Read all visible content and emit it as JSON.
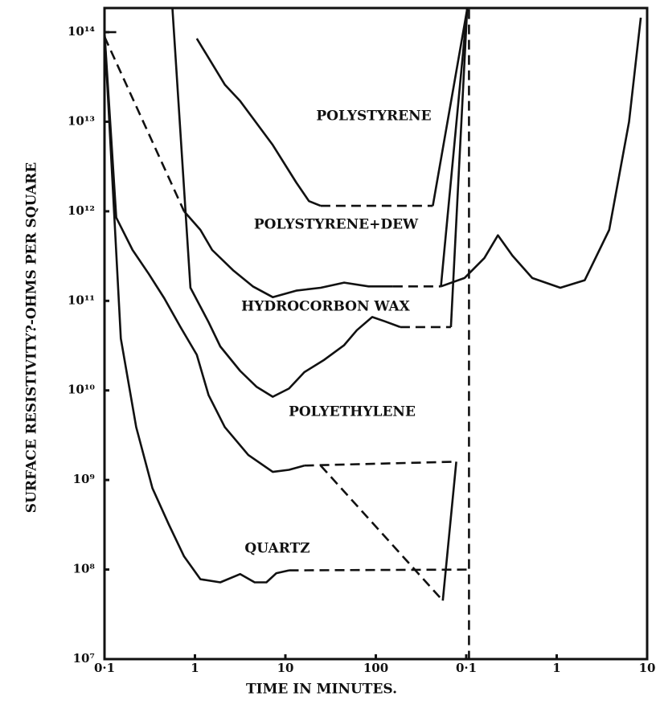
{
  "chart_data": {
    "type": "line",
    "x_label": "TIME IN MINUTES.",
    "y_label": "SURFACE RESISTIVITY?-OHMS PER SQUARE",
    "log_y": true,
    "color": "#111111",
    "xlim": [
      0,
      6
    ],
    "xticks": [
      {
        "value": 0,
        "label": "0·1"
      },
      1,
      {
        "value": 2,
        "label": "10"
      },
      {
        "value": 3,
        "label": "100"
      },
      {
        "value": 4,
        "label": "0·1"
      },
      {
        "value": 5,
        "label": "1"
      },
      {
        "value": 6,
        "label": "10"
      }
    ],
    "ylim": [
      10000000.0,
      186000000000000.0
    ],
    "yticks": [
      {
        "value": 10000000.0,
        "label": "10⁷"
      },
      {
        "value": 100000000.0,
        "label": "10⁸"
      },
      {
        "value": 1000000000.0,
        "label": "10⁹"
      },
      {
        "value": 10000000000.0,
        "label": "10¹⁰"
      },
      {
        "value": 100000000000.0,
        "label": "10¹¹"
      },
      {
        "value": 1000000000000.0,
        "label": "10¹²"
      },
      {
        "value": 10000000000000.0,
        "label": "10¹³"
      },
      {
        "value": 100000000000000.0,
        "label": "10¹⁴"
      }
    ],
    "series": [
      {
        "name": "POLYSTYRENE",
        "x": [
          1.02,
          1.33,
          1.5,
          1.86,
          2.12,
          2.26,
          2.39
        ],
        "values": [
          85000000000000.0,
          26000000000000.0,
          17000000000000.0,
          5500000000000.0,
          2100000000000.0,
          1300000000000.0,
          1150000000000.0
        ]
      },
      {
        "name": "POLYSTYRENE+DEW",
        "x": [
          0.88,
          1.06,
          1.19,
          1.42,
          1.64,
          1.86,
          2.12,
          2.39,
          2.65,
          2.92,
          3.19
        ],
        "values": [
          1000000000000.0,
          620000000000.0,
          370000000000.0,
          220000000000.0,
          145000000000.0,
          110000000000.0,
          130000000000.0,
          140000000000.0,
          160000000000.0,
          145000000000.0,
          145000000000.0
        ]
      },
      {
        "name": "HYDROCORBON WAX",
        "x": [
          0.75,
          0.95,
          1.15,
          1.28,
          1.5,
          1.68,
          1.86,
          2.04,
          2.21,
          2.43,
          2.65,
          2.79,
          2.96,
          3.1,
          3.27
        ],
        "values": [
          190000000000000.0,
          140000000000.0,
          58000000000.0,
          31000000000.0,
          16500000000.0,
          11000000000.0,
          8500000000.0,
          10500000000.0,
          16000000000.0,
          22000000000.0,
          32000000000.0,
          47000000000.0,
          66000000000.0,
          59000000000.0,
          51000000000.0
        ]
      },
      {
        "name": "POLYETHYLENE",
        "x": [
          0,
          0.13,
          0.31,
          0.49,
          0.66,
          0.84,
          1.02,
          1.15,
          1.33,
          1.59,
          1.86,
          2.04,
          2.21
        ],
        "values": [
          100000000000000.0,
          850000000000.0,
          370000000000.0,
          200000000000.0,
          107000000000.0,
          51000000000.0,
          25000000000.0,
          8900000000.0,
          3900000000.0,
          1900000000.0,
          1230000000.0,
          1300000000.0,
          1450000000.0
        ]
      },
      {
        "name": "QUARTZ",
        "x": [
          0,
          0.18,
          0.35,
          0.53,
          0.71,
          0.88,
          1.06,
          1.28,
          1.5,
          1.66,
          1.79,
          1.9,
          2.04
        ],
        "values": [
          100000000000000.0,
          38000000000.0,
          3900000000.0,
          810000000.0,
          320000000.0,
          140000000.0,
          78000000.0,
          72000000.0,
          89000000.0,
          72000000.0,
          72000000.0,
          91000000.0,
          98000000.0
        ]
      }
    ],
    "other_lines": [
      {
        "dashed": true,
        "x": [
          2.39,
          3.63
        ],
        "values": [
          1150000000000.0,
          1150000000000.0
        ]
      },
      {
        "dashed": false,
        "x": [
          3.63,
          4.01
        ],
        "values": [
          1150000000000.0,
          180000000000000.0
        ]
      },
      {
        "dashed": true,
        "x": [
          0,
          0.88
        ],
        "values": [
          89000000000000.0,
          1000000000000.0
        ]
      },
      {
        "dashed": true,
        "x": [
          3.19,
          3.72
        ],
        "values": [
          145000000000.0,
          145000000000.0
        ]
      },
      {
        "dashed": false,
        "x": [
          3.72,
          4.01
        ],
        "values": [
          145000000000.0,
          180000000000000.0
        ]
      },
      {
        "dashed": false,
        "x": [
          3.72,
          3.98,
          4.2,
          4.35,
          4.51,
          4.73,
          5.04,
          5.31,
          5.58,
          5.8,
          5.93
        ],
        "values": [
          145000000000.0,
          180000000000.0,
          300000000000.0,
          540000000000.0,
          320000000000.0,
          180000000000.0,
          140000000000.0,
          170000000000.0,
          620000000000.0,
          10000000000000.0,
          145000000000000.0
        ]
      },
      {
        "dashed": true,
        "x": [
          3.27,
          3.83
        ],
        "values": [
          51000000000.0,
          51000000000.0
        ]
      },
      {
        "dashed": false,
        "x": [
          3.83,
          4.01
        ],
        "values": [
          51000000000.0,
          180000000000000.0
        ]
      },
      {
        "dashed": true,
        "x": [
          2.21,
          3.89
        ],
        "values": [
          1450000000.0,
          1600000000.0
        ]
      },
      {
        "dashed": false,
        "x": [
          3.89,
          3.74
        ],
        "values": [
          1600000000.0,
          45000000.0
        ]
      },
      {
        "dashed": true,
        "x": [
          2.39,
          3.74
        ],
        "values": [
          1450000000.0,
          45000000.0
        ]
      },
      {
        "dashed": false,
        "x": [
          0,
          0.13
        ],
        "values": [
          100000000000000.0,
          100000000000000.0
        ]
      },
      {
        "dashed": true,
        "x": [
          2.04,
          4.03
        ],
        "values": [
          98000000.0,
          100000000.0
        ]
      },
      {
        "dashed": true,
        "x": [
          4.03,
          4.03
        ],
        "values": [
          180000000000000.0,
          10000000.0
        ]
      }
    ]
  }
}
